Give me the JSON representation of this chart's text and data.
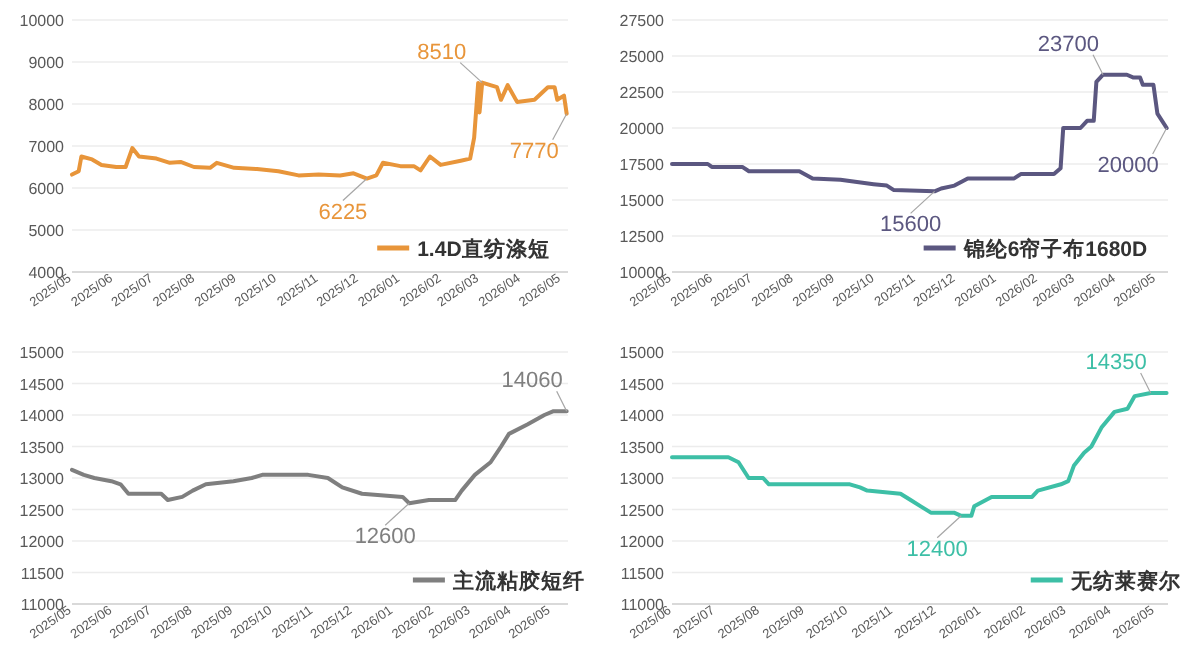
{
  "chart_data": [
    {
      "type": "line",
      "x": [
        "2025-05-01",
        "2025-05-06",
        "2025-05-08",
        "2025-05-16",
        "2025-05-23",
        "2025-06-03",
        "2025-06-10",
        "2025-06-15",
        "2025-06-20",
        "2025-07-03",
        "2025-07-13",
        "2025-07-21",
        "2025-07-31",
        "2025-08-12",
        "2025-08-17",
        "2025-08-30",
        "2025-09-16",
        "2025-10-02",
        "2025-10-17",
        "2025-11-01",
        "2025-11-17",
        "2025-11-27",
        "2025-12-07",
        "2025-12-14",
        "2025-12-19",
        "2026-01-01",
        "2026-01-11",
        "2026-01-16",
        "2026-01-23",
        "2026-01-31",
        "2026-02-15",
        "2026-02-22",
        "2026-02-25",
        "2026-02-28",
        "2026-03-01",
        "2026-03-03",
        "2026-03-14",
        "2026-03-17",
        "2026-03-22",
        "2026-03-29",
        "2026-04-11",
        "2026-04-21",
        "2026-04-26",
        "2026-04-28",
        "2026-05-03",
        "2026-05-05"
      ],
      "series": [
        {
          "name": "1.4D直纺涤短",
          "color": "#e8953a",
          "values": [
            6320,
            6400,
            6750,
            6680,
            6550,
            6500,
            6500,
            6950,
            6750,
            6700,
            6600,
            6620,
            6500,
            6480,
            6600,
            6480,
            6450,
            6400,
            6300,
            6320,
            6300,
            6350,
            6225,
            6300,
            6600,
            6520,
            6520,
            6420,
            6750,
            6550,
            6650,
            6700,
            7200,
            8500,
            7800,
            8510,
            8400,
            8100,
            8450,
            8050,
            8100,
            8400,
            8400,
            8100,
            8200,
            7770
          ]
        }
      ],
      "xlim": [
        "2025-05-01",
        "2026-05-06"
      ],
      "xticks": [
        {
          "value": "2025-05-01",
          "label": "2025/05"
        },
        {
          "value": "2025-06-01",
          "label": "2025/06"
        },
        {
          "value": "2025-07-01",
          "label": "2025/07"
        },
        {
          "value": "2025-08-01",
          "label": "2025/08"
        },
        {
          "value": "2025-09-01",
          "label": "2025/09"
        },
        {
          "value": "2025-10-01",
          "label": "2025/10"
        },
        {
          "value": "2025-11-01",
          "label": "2025/11"
        },
        {
          "value": "2025-12-01",
          "label": "2025/12"
        },
        {
          "value": "2026-01-01",
          "label": "2026/01"
        },
        {
          "value": "2026-02-01",
          "label": "2026/02"
        },
        {
          "value": "2026-03-01",
          "label": "2026/03"
        },
        {
          "value": "2026-04-01",
          "label": "2026/04"
        },
        {
          "value": "2026-05-01",
          "label": "2026/05"
        }
      ],
      "ylim": [
        4000,
        10000
      ],
      "yticks": [
        4000,
        5000,
        6000,
        7000,
        8000,
        9000,
        10000
      ],
      "grid": "y",
      "legend": "bottom right",
      "annotations": [
        {
          "text": "8510",
          "x": "2026-03-03",
          "y": 8510
        },
        {
          "text": "6225",
          "x": "2025-12-07",
          "y": 6225
        },
        {
          "text": "7770",
          "x": "2026-05-05",
          "y": 7770
        }
      ]
    },
    {
      "type": "line",
      "x": [
        "2025-05-01",
        "2025-05-28",
        "2025-05-31",
        "2025-06-23",
        "2025-06-28",
        "2025-08-05",
        "2025-08-15",
        "2025-09-05",
        "2025-09-30",
        "2025-10-10",
        "2025-10-15",
        "2025-11-15",
        "2025-11-20",
        "2025-11-30",
        "2025-12-10",
        "2026-01-14",
        "2026-01-19",
        "2026-02-13",
        "2026-02-18",
        "2026-02-20",
        "2026-03-05",
        "2026-03-10",
        "2026-03-15",
        "2026-03-17",
        "2026-03-22",
        "2026-04-09",
        "2026-04-14",
        "2026-04-19",
        "2026-04-21",
        "2026-04-29",
        "2026-05-02",
        "2026-05-09"
      ],
      "series": [
        {
          "name": "锦纶6帘子布1680D",
          "color": "#5b5780",
          "values": [
            17500,
            17500,
            17300,
            17300,
            17000,
            17000,
            16500,
            16400,
            16100,
            16000,
            15700,
            15600,
            15800,
            16000,
            16500,
            16500,
            16800,
            16800,
            17200,
            20000,
            20000,
            20500,
            20500,
            23200,
            23700,
            23700,
            23500,
            23500,
            23000,
            23000,
            21000,
            20000
          ]
        }
      ],
      "xlim": [
        "2025-05-01",
        "2026-05-10"
      ],
      "xticks": [
        {
          "value": "2025-05-01",
          "label": "2025/05"
        },
        {
          "value": "2025-06-01",
          "label": "2025/06"
        },
        {
          "value": "2025-07-01",
          "label": "2025/07"
        },
        {
          "value": "2025-08-01",
          "label": "2025/08"
        },
        {
          "value": "2025-09-01",
          "label": "2025/09"
        },
        {
          "value": "2025-10-01",
          "label": "2025/10"
        },
        {
          "value": "2025-11-01",
          "label": "2025/11"
        },
        {
          "value": "2025-12-01",
          "label": "2025/12"
        },
        {
          "value": "2026-01-01",
          "label": "2026/01"
        },
        {
          "value": "2026-02-01",
          "label": "2026/02"
        },
        {
          "value": "2026-03-01",
          "label": "2026/03"
        },
        {
          "value": "2026-04-01",
          "label": "2026/04"
        },
        {
          "value": "2026-05-01",
          "label": "2026/05"
        }
      ],
      "ylim": [
        10000,
        27500
      ],
      "yticks": [
        10000,
        12500,
        15000,
        17500,
        20000,
        22500,
        25000,
        27500
      ],
      "grid": "y",
      "legend": "bottom right",
      "annotations": [
        {
          "text": "23700",
          "x": "2026-03-22",
          "y": 23700
        },
        {
          "text": "15600",
          "x": "2025-11-15",
          "y": 15600
        },
        {
          "text": "20000",
          "x": "2026-05-09",
          "y": 20000
        }
      ]
    },
    {
      "type": "line",
      "x": [
        "2025-05-01",
        "2025-05-10",
        "2025-05-18",
        "2025-05-31",
        "2025-06-07",
        "2025-06-13",
        "2025-07-08",
        "2025-07-13",
        "2025-07-24",
        "2025-08-01",
        "2025-08-11",
        "2025-09-01",
        "2025-09-15",
        "2025-09-23",
        "2025-10-28",
        "2025-11-12",
        "2025-11-23",
        "2025-12-08",
        "2026-01-08",
        "2026-01-13",
        "2026-01-28",
        "2026-02-17",
        "2026-02-22",
        "2026-03-04",
        "2026-03-16",
        "2026-03-24",
        "2026-03-30",
        "2026-04-13",
        "2026-04-26",
        "2026-05-03",
        "2026-05-13"
      ],
      "series": [
        {
          "name": "主流粘胶短纤",
          "color": "#7f7f7f",
          "values": [
            13130,
            13050,
            13000,
            12950,
            12900,
            12750,
            12750,
            12650,
            12700,
            12800,
            12900,
            12950,
            13000,
            13050,
            13050,
            13000,
            12850,
            12750,
            12700,
            12600,
            12650,
            12650,
            12800,
            13050,
            13250,
            13500,
            13700,
            13850,
            14000,
            14060,
            14060
          ]
        }
      ],
      "xlim": [
        "2025-05-01",
        "2026-05-14"
      ],
      "xticks": [
        {
          "value": "2025-05-01",
          "label": "2025/05"
        },
        {
          "value": "2025-06-01",
          "label": "2025/06"
        },
        {
          "value": "2025-07-01",
          "label": "2025/07"
        },
        {
          "value": "2025-08-01",
          "label": "2025/08"
        },
        {
          "value": "2025-09-01",
          "label": "2025/09"
        },
        {
          "value": "2025-10-01",
          "label": "2025/10"
        },
        {
          "value": "2025-11-01",
          "label": "2025/11"
        },
        {
          "value": "2025-12-01",
          "label": "2025/12"
        },
        {
          "value": "2026-01-01",
          "label": "2026/01"
        },
        {
          "value": "2026-02-01",
          "label": "2026/02"
        },
        {
          "value": "2026-03-01",
          "label": "2026/03"
        },
        {
          "value": "2026-04-01",
          "label": "2026/04"
        },
        {
          "value": "2026-05-01",
          "label": "2026/05"
        }
      ],
      "ylim": [
        11000,
        15000
      ],
      "yticks": [
        11000,
        11500,
        12000,
        12500,
        13000,
        13500,
        14000,
        14500,
        15000
      ],
      "grid": "y",
      "legend": "bottom right",
      "annotations": [
        {
          "text": "12600",
          "x": "2026-01-13",
          "y": 12600
        },
        {
          "text": "14060",
          "x": "2026-05-13",
          "y": 14060
        }
      ]
    },
    {
      "type": "line",
      "x": [
        "2025-06-01",
        "2025-07-10",
        "2025-07-17",
        "2025-07-24",
        "2025-08-03",
        "2025-08-07",
        "2025-10-02",
        "2025-10-09",
        "2025-10-14",
        "2025-11-06",
        "2025-11-13",
        "2025-11-20",
        "2025-11-27",
        "2025-12-13",
        "2025-12-18",
        "2025-12-25",
        "2025-12-27",
        "2026-01-08",
        "2026-02-05",
        "2026-02-09",
        "2026-02-25",
        "2026-03-02",
        "2026-03-06",
        "2026-03-13",
        "2026-03-18",
        "2026-03-25",
        "2026-04-03",
        "2026-04-12",
        "2026-04-17",
        "2026-04-28",
        "2026-05-09"
      ],
      "series": [
        {
          "name": "无纺莱赛尔",
          "color": "#3dbfa6",
          "values": [
            13330,
            13330,
            13250,
            13000,
            13000,
            12900,
            12900,
            12850,
            12800,
            12750,
            12650,
            12550,
            12450,
            12450,
            12400,
            12400,
            12550,
            12700,
            12700,
            12800,
            12900,
            12950,
            13200,
            13400,
            13500,
            13800,
            14050,
            14100,
            14300,
            14350,
            14350
          ]
        }
      ],
      "xlim": [
        "2025-06-01",
        "2026-05-10"
      ],
      "xticks": [
        {
          "value": "2025-06-01",
          "label": "2025/06"
        },
        {
          "value": "2025-07-01",
          "label": "2025/07"
        },
        {
          "value": "2025-08-01",
          "label": "2025/08"
        },
        {
          "value": "2025-09-01",
          "label": "2025/09"
        },
        {
          "value": "2025-10-01",
          "label": "2025/10"
        },
        {
          "value": "2025-11-01",
          "label": "2025/11"
        },
        {
          "value": "2025-12-01",
          "label": "2025/12"
        },
        {
          "value": "2026-01-01",
          "label": "2026/01"
        },
        {
          "value": "2026-02-01",
          "label": "2026/02"
        },
        {
          "value": "2026-03-01",
          "label": "2026/03"
        },
        {
          "value": "2026-04-01",
          "label": "2026/04"
        },
        {
          "value": "2026-05-01",
          "label": "2026/05"
        }
      ],
      "ylim": [
        11000,
        15000
      ],
      "yticks": [
        11000,
        11500,
        12000,
        12500,
        13000,
        13500,
        14000,
        14500,
        15000
      ],
      "grid": "y",
      "legend": "bottom right",
      "annotations": [
        {
          "text": "14350",
          "x": "2026-04-28",
          "y": 14350
        },
        {
          "text": "12400",
          "x": "2025-12-18",
          "y": 12400
        }
      ]
    }
  ]
}
